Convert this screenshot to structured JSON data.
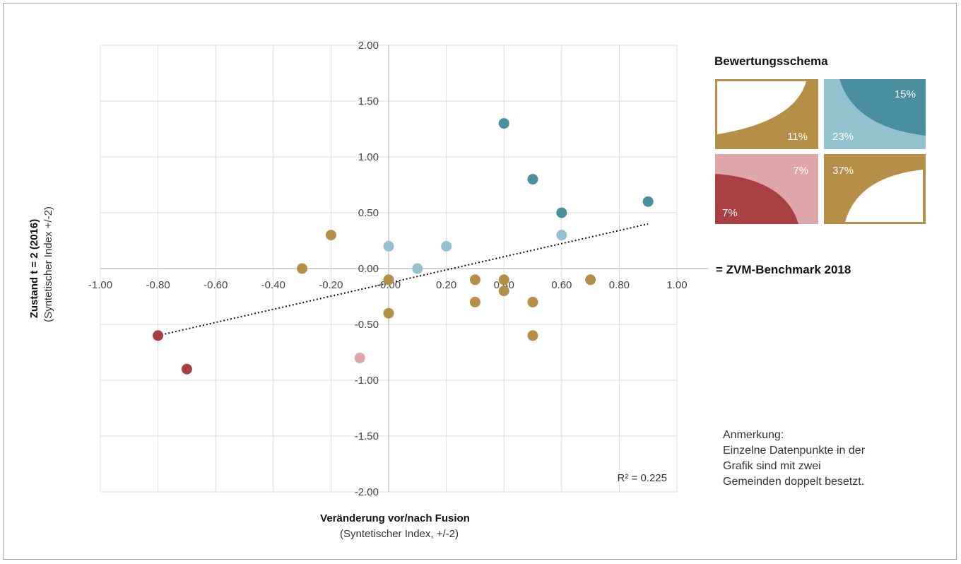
{
  "chart_data": {
    "type": "scatter",
    "title": "",
    "xlabel": "Veränderung vor/nach Fusion",
    "xlabel_sub": "(Syntetischer Index, +/-2)",
    "ylabel": "Zustand t = 2 (2016)",
    "ylabel_sub": "(Syntetischer Index +/-2)",
    "xlim": [
      -1.0,
      1.0
    ],
    "ylim": [
      -2.0,
      2.0
    ],
    "x_ticks": [
      "-1.00",
      "-0.80",
      "-0.60",
      "-0.40",
      "-0.20",
      "-0.00",
      "0.20",
      "0.40",
      "0.60",
      "0.80",
      "1.00"
    ],
    "y_ticks": [
      "2.00",
      "1.50",
      "1.00",
      "0.50",
      "0.00",
      "-0.50",
      "-1.00",
      "-1.50",
      "-2.00"
    ],
    "grid": true,
    "series": [
      {
        "color": "#4a8fa0",
        "points": [
          [
            0.4,
            1.3
          ],
          [
            0.5,
            0.8
          ],
          [
            0.6,
            0.5
          ],
          [
            0.9,
            0.6
          ]
        ]
      },
      {
        "color": "#93c2ce",
        "points": [
          [
            0.0,
            0.2
          ],
          [
            0.1,
            0.0
          ],
          [
            0.2,
            0.2
          ],
          [
            0.6,
            0.3
          ]
        ]
      },
      {
        "color": "#b58f47",
        "points": [
          [
            -0.3,
            0.0
          ],
          [
            -0.2,
            0.3
          ],
          [
            0.0,
            -0.1
          ],
          [
            0.0,
            -0.4
          ],
          [
            0.3,
            -0.1
          ],
          [
            0.3,
            -0.3
          ],
          [
            0.4,
            -0.1
          ],
          [
            0.4,
            -0.2
          ],
          [
            0.5,
            -0.3
          ],
          [
            0.5,
            -0.6
          ],
          [
            0.7,
            -0.1
          ]
        ]
      },
      {
        "color": "#a83f43",
        "points": [
          [
            -0.8,
            -0.6
          ],
          [
            -0.7,
            -0.9
          ]
        ]
      },
      {
        "color": "#e0a7aa",
        "points": [
          [
            -0.1,
            -0.8
          ]
        ]
      }
    ],
    "trendline": {
      "from": [
        -0.8,
        -0.6
      ],
      "to": [
        0.9,
        0.4
      ],
      "style": "dotted"
    },
    "r2_label": "R² = 0.225",
    "benchmark_label": "= ZVM-Benchmark 2018"
  },
  "legend": {
    "title": "Bewertungsschema",
    "cells": [
      {
        "position": "top-left",
        "pct": "11%",
        "bg": "#b58f47",
        "shape": "#ffffff"
      },
      {
        "position": "top-right",
        "pct_upper": "15%",
        "pct_lower": "23%",
        "bg": "#93c2ce",
        "shape": "#4a8fa0"
      },
      {
        "position": "bottom-left",
        "pct_upper": "7%",
        "pct_lower": "7%",
        "bg": "#e0a7aa",
        "shape": "#a83f43"
      },
      {
        "position": "bottom-right",
        "pct": "37%",
        "bg": "#b58f47",
        "shape": "#ffffff"
      }
    ]
  },
  "note": {
    "lines": [
      "Anmerkung:",
      "Einzelne Datenpunkte in der",
      "Grafik sind mit zwei",
      "Gemeinden doppelt besetzt."
    ]
  }
}
